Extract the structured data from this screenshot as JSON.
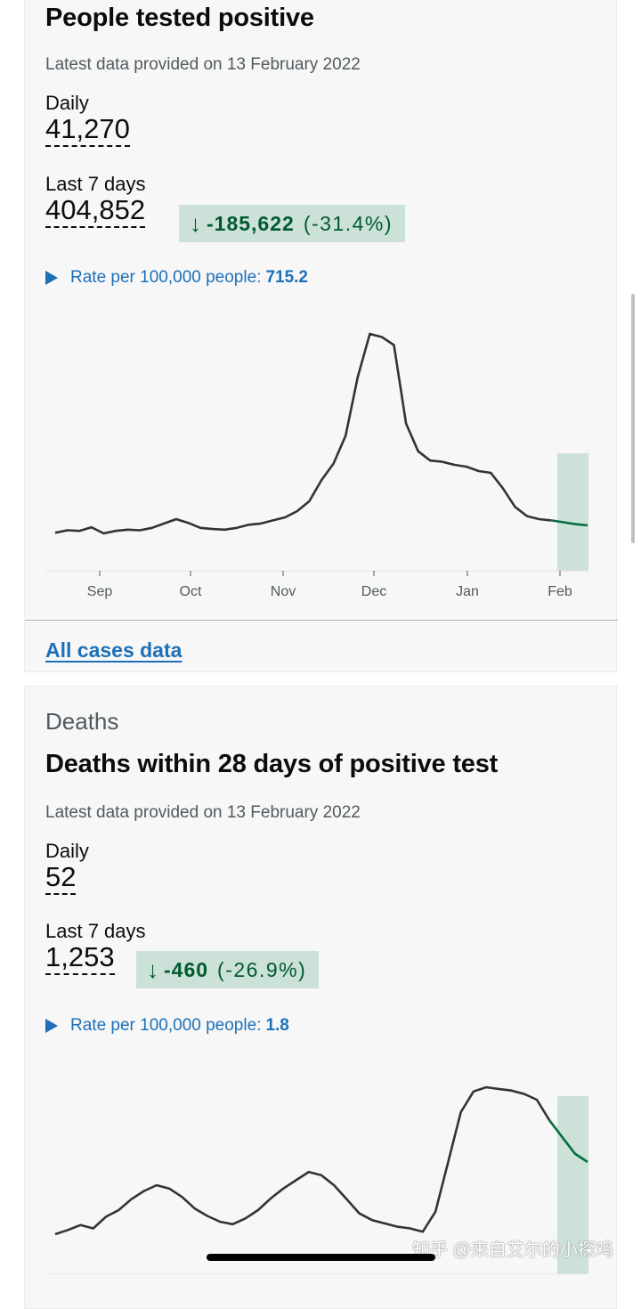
{
  "cases": {
    "title": "People tested positive",
    "latest": "Latest data provided on 13 February 2022",
    "daily_label": "Daily",
    "daily_value": "41,270",
    "last7_label": "Last 7 days",
    "last7_value": "404,852",
    "change_delta": "-185,622",
    "change_pct": "(-31.4%)",
    "rate_label": "Rate per 100,000 people:",
    "rate_value": "715.2",
    "link": "All cases data"
  },
  "deaths": {
    "category": "Deaths",
    "title": "Deaths within 28 days of positive test",
    "latest": "Latest data provided on 13 February 2022",
    "daily_label": "Daily",
    "daily_value": "52",
    "last7_label": "Last 7 days",
    "last7_value": "1,253",
    "change_delta": "-460",
    "change_pct": "(-26.9%)",
    "rate_label": "Rate per 100,000 people:",
    "rate_value": "1.8"
  },
  "icons": {
    "change_arrow": "arrow-down-icon",
    "rate_toggle": "triangle-right-icon"
  },
  "colors": {
    "line": "#333333",
    "recent_line": "#00703c",
    "recent_band": "#cce2d8",
    "link": "#1d70b8",
    "positive_change_bg": "#cce2d8",
    "positive_change_text": "#005a30"
  },
  "watermark": "知乎 @来自艾尔的小探鸡",
  "chart_data": [
    {
      "type": "line",
      "x_ticks": [
        "Sep",
        "Oct",
        "Nov",
        "Dec",
        "Jan",
        "Feb"
      ],
      "series": [
        {
          "values": [
            88,
            92,
            91,
            97,
            87,
            91,
            93,
            92,
            96,
            103,
            110,
            104,
            96,
            94,
            93,
            96,
            101,
            103,
            108,
            113,
            123,
            139,
            173,
            200,
            245,
            340,
            410,
            405,
            392,
            265,
            220,
            205,
            203,
            198,
            195,
            188,
            185,
            160,
            130,
            115,
            110,
            108,
            105,
            102,
            100
          ]
        }
      ],
      "recent_band": "Feb"
    },
    {
      "type": "line",
      "x_ticks": [],
      "series": [
        {
          "values": [
            3,
            8,
            14,
            10,
            24,
            32,
            45,
            55,
            62,
            58,
            48,
            34,
            25,
            18,
            15,
            22,
            32,
            46,
            58,
            68,
            78,
            74,
            62,
            45,
            28,
            20,
            16,
            12,
            10,
            6,
            30,
            90,
            150,
            175,
            180,
            178,
            176,
            172,
            165,
            140,
            120,
            100,
            90
          ]
        }
      ],
      "recent_band": "latest week"
    }
  ]
}
